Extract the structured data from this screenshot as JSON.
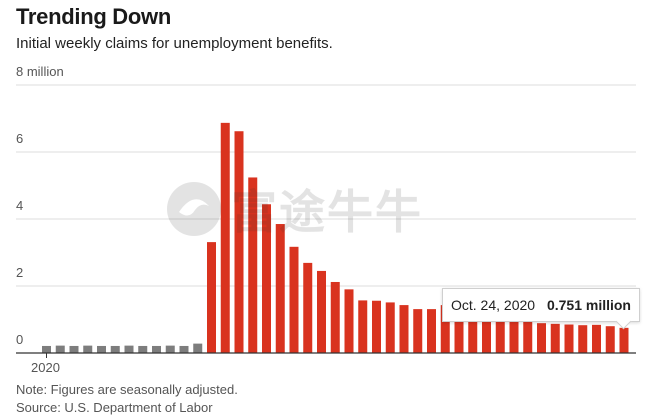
{
  "header": {
    "title": "Trending Down",
    "subtitle": "Initial weekly claims for unemployment benefits."
  },
  "notes": {
    "note": "Note: Figures are seasonally adjusted.",
    "source": "Source: U.S. Department of Labor"
  },
  "watermark": {
    "text": "富途牛牛",
    "icon": "futu-logo-icon"
  },
  "tooltip": {
    "date": "Oct. 24, 2020",
    "value": "0.751 million"
  },
  "colors": {
    "pre_pandemic": "#7d7d7d",
    "pandemic": "#d9331f",
    "grid": "#dddddd",
    "axis": "#333333"
  },
  "chart_data": {
    "type": "bar",
    "title": "Trending Down",
    "subtitle": "Initial weekly claims for unemployment benefits.",
    "xlabel": "",
    "ylabel": "",
    "ylim": [
      0,
      8
    ],
    "yticks": [
      {
        "value": 0,
        "label": "0"
      },
      {
        "value": 2,
        "label": "2"
      },
      {
        "value": 4,
        "label": "4"
      },
      {
        "value": 6,
        "label": "6"
      },
      {
        "value": 8,
        "label": "8 million"
      }
    ],
    "x_tick_labels": [
      {
        "index": 0,
        "label": "2020"
      }
    ],
    "grid": true,
    "highlight_index": 42,
    "values": [
      0.21,
      0.22,
      0.21,
      0.22,
      0.21,
      0.21,
      0.22,
      0.21,
      0.21,
      0.22,
      0.21,
      0.28,
      3.31,
      6.87,
      6.62,
      5.24,
      4.44,
      3.85,
      3.17,
      2.69,
      2.45,
      2.12,
      1.9,
      1.57,
      1.56,
      1.51,
      1.43,
      1.31,
      1.31,
      1.43,
      1.19,
      1.11,
      1.01,
      0.97,
      0.97,
      0.95,
      0.89,
      0.87,
      0.85,
      0.83,
      0.84,
      0.8,
      0.751
    ],
    "colors_by_index": {
      "pre_pandemic_until": 11
    }
  }
}
